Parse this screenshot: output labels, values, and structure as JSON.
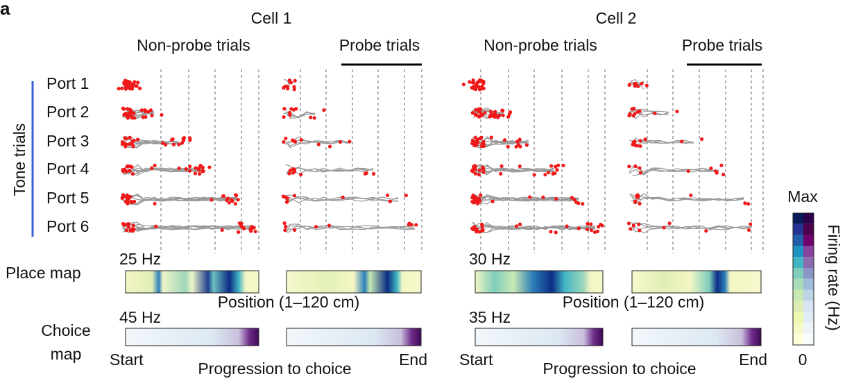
{
  "panel_label": "a",
  "rows_label": "Tone trials",
  "ports": [
    "Port 1",
    "Port 2",
    "Port 3",
    "Port 4",
    "Port 5",
    "Port 6"
  ],
  "place_map_label": "Place map",
  "choice_map_label": [
    "Choice",
    "map"
  ],
  "cells": [
    {
      "title": "Cell 1",
      "conditions": [
        "Non-probe trials",
        "Probe trials"
      ],
      "place_rate": "25 Hz",
      "choice_rate": "45 Hz",
      "position_label": "Position (1–120 cm)",
      "start_label": "Start",
      "end_label": "End",
      "progression_label": "Progression to choice"
    },
    {
      "title": "Cell 2",
      "conditions": [
        "Non-probe trials",
        "Probe trials"
      ],
      "place_rate": "30 Hz",
      "choice_rate": "35 Hz",
      "position_label": "Position (1–120 cm)",
      "start_label": "Start",
      "end_label": "End",
      "progression_label": "Progression to choice"
    }
  ],
  "colorbar": {
    "max_label": "Max",
    "min_label": "0",
    "label": "Firing rate (Hz)"
  }
}
